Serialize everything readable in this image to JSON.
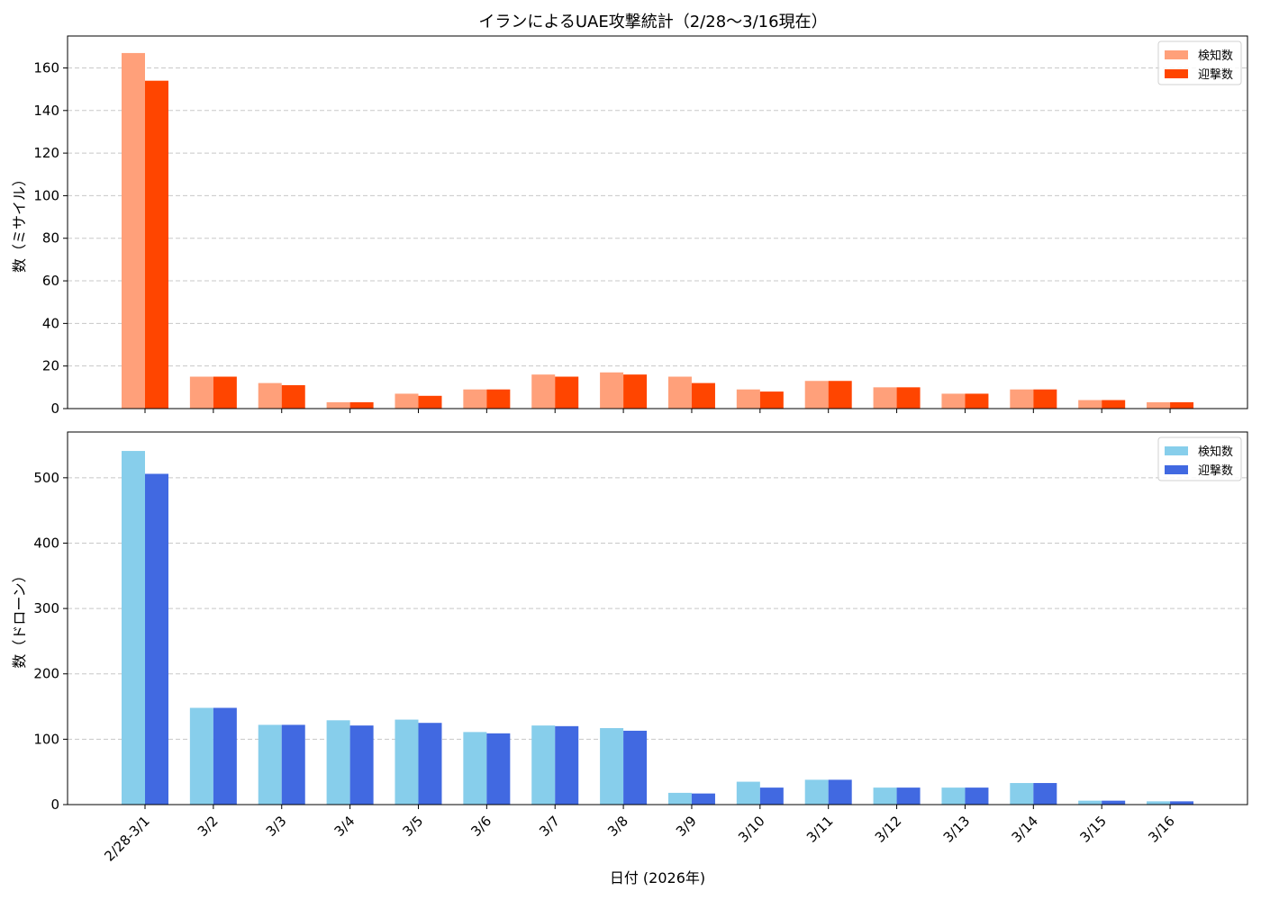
{
  "chart_data": {
    "type": "bar",
    "title": "イランによるUAE攻撃統計（2/28〜3/16現在）",
    "xlabel": "日付 (2026年)",
    "categories": [
      "2/28-3/1",
      "3/2",
      "3/3",
      "3/4",
      "3/5",
      "3/6",
      "3/7",
      "3/8",
      "3/9",
      "3/10",
      "3/11",
      "3/12",
      "3/13",
      "3/14",
      "3/15",
      "3/16"
    ],
    "grid": "y-dashed",
    "legend_position": "top-right",
    "panels": [
      {
        "ylabel": "数（ミサイル）",
        "ylim": [
          0,
          175
        ],
        "yticks": [
          0,
          20,
          40,
          60,
          80,
          100,
          120,
          140,
          160
        ],
        "series": [
          {
            "name": "検知数",
            "color": "#FFA07A",
            "values": [
              167,
              15,
              12,
              3,
              7,
              9,
              16,
              17,
              15,
              9,
              13,
              10,
              7,
              9,
              4,
              3
            ]
          },
          {
            "name": "迎撃数",
            "color": "#FF4500",
            "values": [
              154,
              15,
              11,
              3,
              6,
              9,
              15,
              16,
              12,
              8,
              13,
              10,
              7,
              9,
              4,
              3
            ]
          }
        ]
      },
      {
        "ylabel": "数（ドローン）",
        "ylim": [
          0,
          570
        ],
        "yticks": [
          0,
          100,
          200,
          300,
          400,
          500
        ],
        "series": [
          {
            "name": "検知数",
            "color": "#87CEEB",
            "values": [
              541,
              148,
              122,
              129,
              130,
              111,
              121,
              117,
              18,
              35,
              38,
              26,
              26,
              33,
              6,
              5
            ]
          },
          {
            "name": "迎撃数",
            "color": "#4169E1",
            "values": [
              506,
              148,
              122,
              121,
              125,
              109,
              120,
              113,
              17,
              26,
              38,
              26,
              26,
              33,
              6,
              5
            ]
          }
        ]
      }
    ]
  }
}
